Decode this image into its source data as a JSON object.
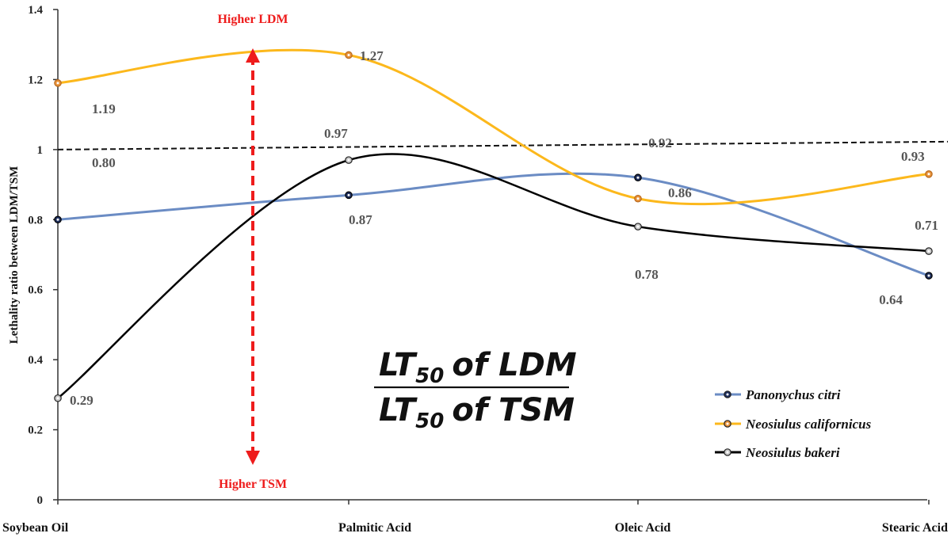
{
  "chart_data": {
    "type": "line",
    "title": "",
    "ylabel": "Lethality ratio between LDM/TSM",
    "xlabel": "",
    "ylim": [
      0,
      1.4
    ],
    "yticks": [
      "0",
      "0.2",
      "0.4",
      "0.6",
      "0.8",
      "1",
      "1.2",
      "1.4"
    ],
    "categories": [
      "Soybean Oil",
      "Palmitic Acid",
      "Oleic Acid",
      "Stearic Acid"
    ],
    "reference_line": 1.0,
    "series": [
      {
        "name": "Panonychus citri",
        "color": "#6b8cc4",
        "marker_color": "#1f2f5c",
        "values": [
          0.8,
          0.87,
          0.92,
          0.64
        ],
        "labels": [
          "0.80",
          "0.87",
          "0.92",
          "0.64"
        ]
      },
      {
        "name": "Neosiulus californicus",
        "color": "#fcb81c",
        "marker_color": "#e8923a",
        "values": [
          1.19,
          1.27,
          0.86,
          0.93
        ],
        "labels": [
          "1.19",
          "1.27",
          "0.86",
          "0.93"
        ]
      },
      {
        "name": "Neosiulus bakeri",
        "color": "#000000",
        "marker_color": "#c8c8c8",
        "values": [
          0.29,
          0.97,
          0.78,
          0.71
        ],
        "labels": [
          "0.29",
          "0.97",
          "0.78",
          "0.71"
        ]
      }
    ],
    "annotations": {
      "higher_top": "Higher LDM",
      "higher_bottom": "Higher TSM",
      "arrow_color": "#ee1c1c"
    },
    "formula": {
      "numerator": "LT",
      "denominator": "LT",
      "subscript": "50",
      "numerator_suffix": "of LDM",
      "denominator_suffix": "of TSM"
    },
    "legend_position": "bottom-right",
    "grid": false
  }
}
